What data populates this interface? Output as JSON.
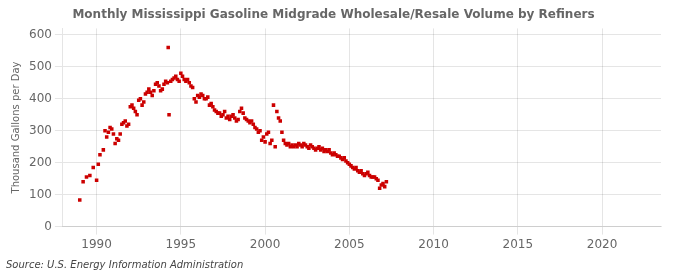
{
  "chart_data": {
    "type": "scatter",
    "title": "Monthly Mississippi Gasoline Midgrade Wholesale/Resale Volume by Refiners",
    "ylabel": "Thousand Gallons per Day",
    "source": "Source: U.S. Energy Information Administration",
    "color": "#cc0000",
    "marker": "square",
    "grid": true,
    "xlim": [
      1988.0,
      2023.5
    ],
    "ylim": [
      0,
      620
    ],
    "xticks": [
      1990,
      1995,
      2000,
      2005,
      2010,
      2015,
      2020
    ],
    "yticks": [
      0,
      100,
      200,
      300,
      400,
      500,
      600
    ],
    "x": [
      1989.0,
      1989.2,
      1989.4,
      1989.6,
      1989.8,
      1990.0,
      1990.1,
      1990.2,
      1990.4,
      1990.5,
      1990.6,
      1990.7,
      1990.8,
      1990.9,
      1991.0,
      1991.1,
      1991.2,
      1991.3,
      1991.4,
      1991.5,
      1991.6,
      1991.7,
      1991.8,
      1991.9,
      1992.0,
      1992.1,
      1992.2,
      1992.3,
      1992.4,
      1992.5,
      1992.6,
      1992.7,
      1992.8,
      1992.9,
      1993.0,
      1993.1,
      1993.2,
      1993.3,
      1993.4,
      1993.5,
      1993.6,
      1993.7,
      1993.8,
      1993.9,
      1994.0,
      1994.1,
      1994.2,
      1994.25,
      1994.3,
      1994.4,
      1994.5,
      1994.6,
      1994.7,
      1994.8,
      1994.9,
      1995.0,
      1995.1,
      1995.2,
      1995.3,
      1995.4,
      1995.5,
      1995.6,
      1995.7,
      1995.8,
      1995.9,
      1996.0,
      1996.1,
      1996.2,
      1996.3,
      1996.4,
      1996.5,
      1996.6,
      1996.7,
      1996.8,
      1996.9,
      1997.0,
      1997.1,
      1997.2,
      1997.3,
      1997.4,
      1997.5,
      1997.6,
      1997.7,
      1997.8,
      1997.9,
      1998.0,
      1998.1,
      1998.2,
      1998.3,
      1998.4,
      1998.5,
      1998.6,
      1998.7,
      1998.8,
      1998.9,
      1999.0,
      1999.1,
      1999.2,
      1999.3,
      1999.4,
      1999.5,
      1999.6,
      1999.7,
      1999.8,
      1999.9,
      2000.0,
      2000.1,
      2000.2,
      2000.3,
      2000.4,
      2000.5,
      2000.6,
      2000.7,
      2000.8,
      2000.9,
      2001.0,
      2001.1,
      2001.2,
      2001.3,
      2001.4,
      2001.5,
      2001.6,
      2001.7,
      2001.8,
      2001.9,
      2002.0,
      2002.1,
      2002.2,
      2002.3,
      2002.4,
      2002.5,
      2002.6,
      2002.7,
      2002.8,
      2002.9,
      2003.0,
      2003.1,
      2003.2,
      2003.3,
      2003.4,
      2003.5,
      2003.6,
      2003.7,
      2003.8,
      2003.9,
      2004.0,
      2004.1,
      2004.2,
      2004.3,
      2004.4,
      2004.5,
      2004.6,
      2004.7,
      2004.8,
      2004.9,
      2005.0,
      2005.1,
      2005.2,
      2005.3,
      2005.4,
      2005.5,
      2005.6,
      2005.7,
      2005.8,
      2005.9,
      2006.0,
      2006.1,
      2006.2,
      2006.3,
      2006.4,
      2006.5,
      2006.6,
      2006.7,
      2006.8,
      2006.9,
      2007.0,
      2007.1,
      2007.2
    ],
    "values": [
      83,
      140,
      155,
      160,
      185,
      145,
      195,
      225,
      240,
      300,
      280,
      295,
      310,
      305,
      290,
      260,
      275,
      270,
      290,
      320,
      325,
      330,
      315,
      320,
      375,
      380,
      370,
      360,
      350,
      395,
      400,
      380,
      390,
      415,
      420,
      430,
      420,
      410,
      425,
      445,
      450,
      440,
      425,
      430,
      445,
      455,
      450,
      560,
      350,
      455,
      460,
      465,
      470,
      460,
      455,
      480,
      470,
      460,
      455,
      460,
      450,
      440,
      435,
      400,
      390,
      410,
      405,
      415,
      410,
      400,
      400,
      405,
      380,
      385,
      375,
      365,
      360,
      355,
      355,
      345,
      350,
      360,
      340,
      345,
      335,
      345,
      350,
      340,
      330,
      335,
      360,
      370,
      355,
      340,
      335,
      330,
      325,
      330,
      320,
      310,
      305,
      295,
      300,
      270,
      280,
      265,
      290,
      295,
      260,
      270,
      380,
      250,
      360,
      340,
      330,
      295,
      270,
      260,
      255,
      260,
      250,
      255,
      250,
      255,
      250,
      260,
      255,
      250,
      260,
      255,
      250,
      245,
      255,
      250,
      245,
      240,
      245,
      250,
      240,
      245,
      235,
      240,
      235,
      240,
      230,
      225,
      230,
      225,
      220,
      220,
      215,
      210,
      215,
      205,
      200,
      195,
      190,
      185,
      180,
      185,
      175,
      170,
      175,
      165,
      160,
      165,
      170,
      160,
      155,
      155,
      155,
      150,
      145,
      120,
      130,
      135,
      125,
      140
    ]
  }
}
